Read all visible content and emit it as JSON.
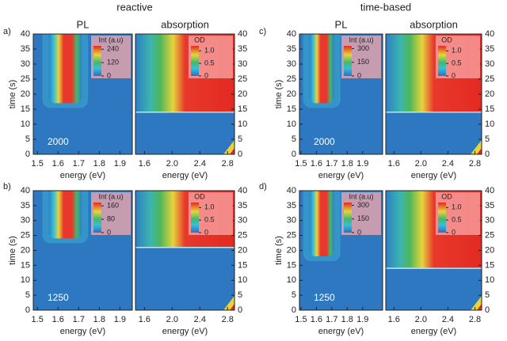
{
  "figure": {
    "column_titles": [
      "reactive",
      "time-based"
    ],
    "panel_labels": [
      "a)",
      "b)",
      "c)",
      "d)"
    ]
  },
  "chart_data": [
    {
      "type": "heatmap",
      "title": "PL",
      "xlabel": "energy (eV)",
      "ylabel": "time (s)",
      "annotation": "2000",
      "xlim": [
        1.48,
        1.96
      ],
      "xticks": [
        1.5,
        1.6,
        1.7,
        1.8,
        1.9
      ],
      "ylim": [
        0,
        40
      ],
      "yticks": [
        0,
        5,
        10,
        15,
        20,
        25,
        30,
        35,
        40
      ],
      "colorbar": {
        "label": "Int (a.u)",
        "lim": [
          0,
          270
        ],
        "ticks": [
          240,
          120,
          0
        ]
      }
    },
    {
      "type": "heatmap",
      "title": "absorption",
      "xlabel": "energy (eV)",
      "xlim": [
        1.47,
        2.9
      ],
      "xticks": [
        1.6,
        {
          "value": 2,
          "label": "2.0"
        },
        2.4,
        2.8
      ],
      "ylim": [
        0,
        40
      ],
      "yticks": [
        0,
        5,
        10,
        15,
        20,
        25,
        30,
        35,
        40
      ],
      "colorbar": {
        "label": "OD",
        "lim": [
          0,
          1.2
        ],
        "ticks": [
          {
            "value": 1,
            "label": "1.0"
          },
          0.5,
          0
        ]
      }
    },
    {
      "type": "heatmap",
      "xlabel": "energy (eV)",
      "ylabel": "time (s)",
      "annotation": "1250",
      "xlim": [
        1.48,
        1.96
      ],
      "xticks": [
        1.5,
        1.6,
        1.7,
        1.8,
        1.9
      ],
      "ylim": [
        0,
        40
      ],
      "yticks": [
        0,
        5,
        10,
        15,
        20,
        25,
        30,
        35,
        40
      ],
      "colorbar": {
        "label": "Int (a.u)",
        "lim": [
          0,
          180
        ],
        "ticks": [
          160,
          80,
          0
        ]
      }
    },
    {
      "type": "heatmap",
      "xlabel": "energy (eV)",
      "xlim": [
        1.47,
        2.9
      ],
      "xticks": [
        1.6,
        {
          "value": 2,
          "label": "2.0"
        },
        2.4,
        2.8
      ],
      "ylim": [
        0,
        40
      ],
      "yticks": [
        0,
        5,
        10,
        15,
        20,
        25,
        30,
        35,
        40
      ],
      "colorbar": {
        "label": "OD",
        "lim": [
          0,
          1.2
        ],
        "ticks": [
          {
            "value": 1,
            "label": "1.0"
          },
          0.5,
          0
        ]
      }
    },
    {
      "type": "heatmap",
      "title": "PL",
      "xlabel": "energy (eV)",
      "ylabel": "time (s)",
      "annotation": "2000",
      "xlim": [
        1.49,
        2.03
      ],
      "xticks": [
        1.5,
        1.6,
        1.7,
        1.8,
        1.9
      ],
      "ylim": [
        0,
        40
      ],
      "yticks": [
        0,
        5,
        10,
        15,
        20,
        25,
        30,
        35,
        40
      ],
      "colorbar": {
        "label": "Int (a.u)",
        "lim": [
          0,
          330
        ],
        "ticks": [
          300,
          150,
          0
        ]
      }
    },
    {
      "type": "heatmap",
      "title": "absorption",
      "xlabel": "energy (eV)",
      "xlim": [
        1.48,
        2.9
      ],
      "xticks": [
        1.6,
        {
          "value": 2,
          "label": "2.0"
        },
        2.4,
        2.8
      ],
      "ylim": [
        0,
        40
      ],
      "yticks": [
        0,
        5,
        10,
        15,
        20,
        25,
        30,
        35,
        40
      ],
      "colorbar": {
        "label": "OD",
        "lim": [
          0,
          1.2
        ],
        "ticks": [
          {
            "value": 1,
            "label": "1.0"
          },
          0.5,
          0
        ]
      }
    },
    {
      "type": "heatmap",
      "xlabel": "energy (eV)",
      "ylabel": "time (s)",
      "annotation": "1250",
      "xlim": [
        1.49,
        2.03
      ],
      "xticks": [
        1.5,
        1.6,
        1.7,
        1.8,
        1.9
      ],
      "ylim": [
        0,
        40
      ],
      "yticks": [
        0,
        5,
        10,
        15,
        20,
        25,
        30,
        35,
        40
      ],
      "colorbar": {
        "label": "Int (a.u)",
        "lim": [
          0,
          330
        ],
        "ticks": [
          300,
          150,
          0
        ]
      }
    },
    {
      "type": "heatmap",
      "xlabel": "energy (eV)",
      "xlim": [
        1.48,
        2.9
      ],
      "xticks": [
        1.6,
        {
          "value": 2,
          "label": "2.0"
        },
        2.4,
        2.8
      ],
      "ylim": [
        0,
        40
      ],
      "yticks": [
        0,
        5,
        10,
        15,
        20,
        25,
        30,
        35,
        40
      ],
      "colorbar": {
        "label": "OD",
        "lim": [
          0,
          1.2
        ],
        "ticks": [
          {
            "value": 1,
            "label": "1.0"
          },
          0.5,
          0
        ]
      }
    }
  ]
}
